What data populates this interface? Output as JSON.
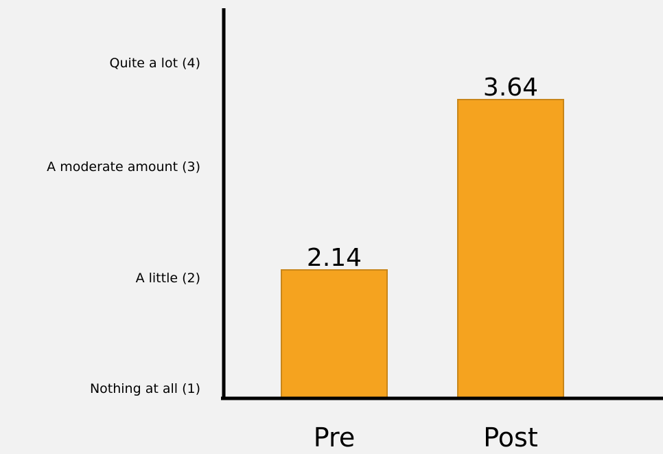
{
  "chart_data": {
    "type": "bar",
    "categories": [
      "Pre",
      "Post"
    ],
    "values": [
      2.14,
      3.64
    ],
    "data_labels": [
      "2.14",
      "3.64"
    ],
    "yticks": [
      {
        "value": 1,
        "label": "Nothing at all (1)"
      },
      {
        "value": 2,
        "label": "A little (2)"
      },
      {
        "value": 3,
        "label": "A moderate amount (3)"
      },
      {
        "value": 4,
        "label": "Quite a lot (4)"
      }
    ],
    "ylim": [
      1,
      4.5
    ],
    "grid": false,
    "colors": {
      "bar_fill": "#f5a31f",
      "bar_stroke": "#c8861a",
      "axis": "#000000",
      "background": "#f2f2f2"
    }
  }
}
